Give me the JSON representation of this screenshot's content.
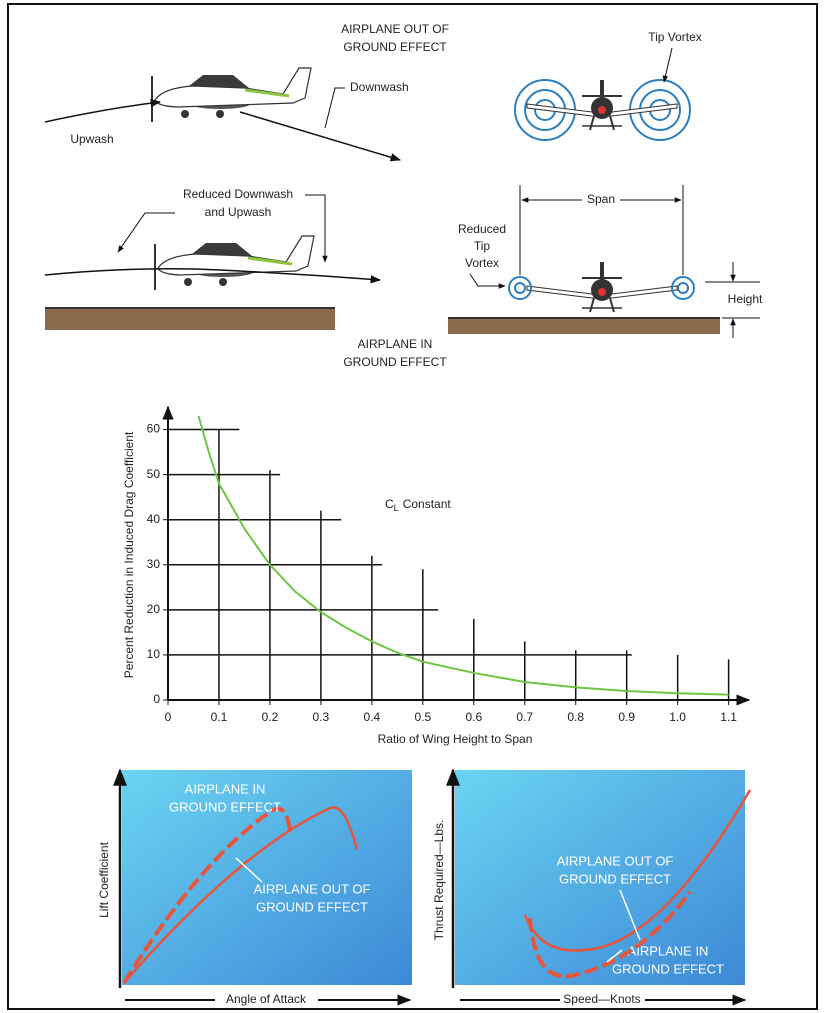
{
  "top": {
    "out_title": [
      "AIRPLANE OUT OF",
      "GROUND EFFECT"
    ],
    "upwash": "Upwash",
    "downwash": "Downwash",
    "tip_vortex": "Tip Vortex",
    "reduced_downwash": [
      "Reduced Downwash",
      "and Upwash"
    ],
    "span": "Span",
    "reduced_tip_vortex": [
      "Reduced",
      "Tip",
      "Vortex"
    ],
    "height": "Height",
    "in_title": [
      "AIRPLANE IN",
      "GROUND EFFECT"
    ]
  },
  "chart_data": {
    "type": "line",
    "x": [
      0.06,
      0.08,
      0.1,
      0.15,
      0.2,
      0.25,
      0.3,
      0.35,
      0.4,
      0.45,
      0.5,
      0.6,
      0.7,
      0.8,
      0.9,
      1.0,
      1.1
    ],
    "series": [
      {
        "color": "#6cc644",
        "values": [
          63,
          55,
          48,
          38,
          30,
          24,
          19.5,
          16,
          13,
          10.5,
          8.5,
          6,
          4,
          2.8,
          2,
          1.5,
          1.2
        ]
      }
    ],
    "xlim": [
      0,
      1.14
    ],
    "ylim": [
      0,
      65
    ],
    "xticks": [
      0,
      0.1,
      0.2,
      0.3,
      0.4,
      0.5,
      0.6,
      0.7,
      0.8,
      0.9,
      {
        "value": 1,
        "label": "1.0"
      },
      1.1
    ],
    "yticks": [
      0,
      10,
      20,
      30,
      40,
      50,
      60
    ],
    "vgrid_tops": [
      60,
      51,
      42,
      32,
      29,
      18,
      13,
      11,
      11,
      10,
      9
    ],
    "hgrid_ends": [
      0.91,
      0.53,
      0.42,
      0.34,
      0.22,
      0.14
    ],
    "xlabel": "Ratio of Wing Height to Span",
    "ylabel": "Percent Reduction in Induced Drag Coefficient",
    "annotation": {
      "symbol": "C",
      "subscript": "L",
      "text": "Constant"
    }
  },
  "lift_panel": {
    "ylabel": "Lift Coefficient",
    "xlabel": "Angle of Attack",
    "in_label": [
      "AIRPLANE IN",
      "GROUND EFFECT"
    ],
    "out_label": [
      "AIRPLANE OUT OF",
      "GROUND EFFECT"
    ]
  },
  "thrust_panel": {
    "ylabel": "Thrust Required—Lbs.",
    "xlabel": "Speed—Knots",
    "out_label": [
      "AIRPLANE OUT OF",
      "GROUND EFFECT"
    ],
    "in_label": [
      "AIRPLANE IN",
      "GROUND EFFECT"
    ]
  }
}
